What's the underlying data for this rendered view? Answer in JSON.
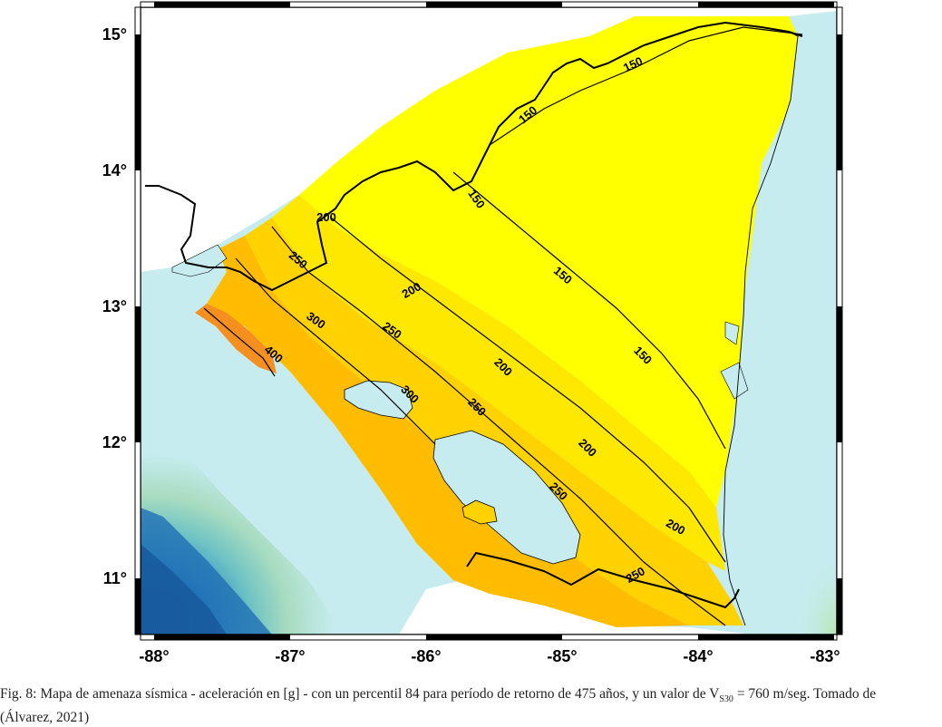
{
  "map": {
    "x_ticks": [
      "-88°",
      "-87°",
      "-86°",
      "-85°",
      "-84°",
      "-83°"
    ],
    "y_ticks": [
      "15°",
      "14°",
      "13°",
      "12°",
      "11°"
    ],
    "contour_labels": [
      "150",
      "150",
      "150",
      "150",
      "150",
      "200",
      "200",
      "200",
      "200",
      "200",
      "250",
      "250",
      "250",
      "250",
      "250",
      "300",
      "300",
      "400"
    ],
    "colors": {
      "ocean": "#c6ecf0",
      "lake": "#c6ecf0",
      "hazard_150": "#ffff00",
      "hazard_200": "#ffe800",
      "hazard_250": "#ffd200",
      "hazard_300": "#ffbc00",
      "hazard_400": "#f59020",
      "deep_trench": "#1f6fb5",
      "border": "#000000",
      "contour": "#000000"
    }
  },
  "caption": {
    "part1": "Fig. 8: Mapa de amenaza sísmica - aceleración en [g] - con un percentil 84 para período de retorno de 475 años, y un valor de V",
    "subscript": "S30",
    "part2": " = 760 m/seg. Tomado de",
    "line2": "(Álvarez, 2021)"
  }
}
